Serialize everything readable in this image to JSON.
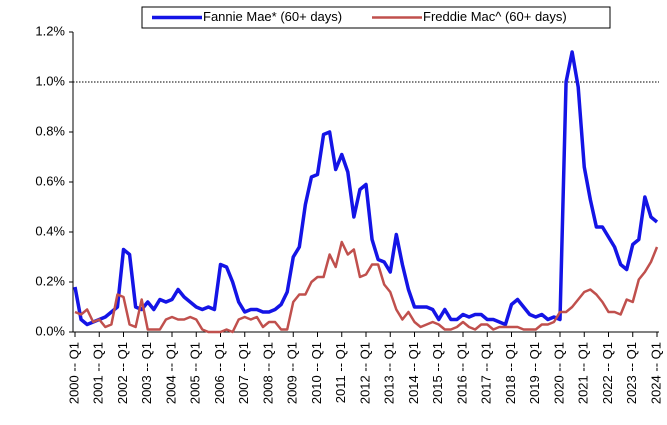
{
  "chart_data": {
    "type": "line",
    "categories": [
      "2000 -- Q1",
      null,
      null,
      null,
      "2001 -- Q1",
      null,
      null,
      null,
      "2002 -- Q1",
      null,
      null,
      null,
      "2003 -- Q1",
      null,
      null,
      null,
      "2004 -- Q1",
      null,
      null,
      null,
      "2005 -- Q1",
      null,
      null,
      null,
      "2006 -- Q1",
      null,
      null,
      null,
      "2007 -- Q1",
      null,
      null,
      null,
      "2008 -- Q1",
      null,
      null,
      null,
      "2009 -- Q1",
      null,
      null,
      null,
      "2010 -- Q1",
      null,
      null,
      null,
      "2011 -- Q1",
      null,
      null,
      null,
      "2012 -- Q1",
      null,
      null,
      null,
      "2013 -- Q1",
      null,
      null,
      null,
      "2014 -- Q1",
      null,
      null,
      null,
      "2015 -- Q1",
      null,
      null,
      null,
      "2016 -- Q1",
      null,
      null,
      null,
      "2017 -- Q1",
      null,
      null,
      null,
      "2018 -- Q1",
      null,
      null,
      null,
      "2019 -- Q1",
      null,
      null,
      null,
      "2020 -- Q1",
      null,
      null,
      null,
      "2021 -- Q1",
      null,
      null,
      null,
      "2022 -- Q1",
      null,
      null,
      null,
      "2023 -- Q1",
      null,
      null,
      null,
      "2024 -- Q1"
    ],
    "series": [
      {
        "name": "Fannie Mae* (60+ days)",
        "color": "#1414e6",
        "values": [
          0.18,
          0.05,
          0.03,
          0.04,
          0.05,
          0.06,
          0.08,
          0.1,
          0.33,
          0.31,
          0.1,
          0.09,
          0.12,
          0.09,
          0.13,
          0.12,
          0.13,
          0.17,
          0.14,
          0.12,
          0.1,
          0.09,
          0.1,
          0.09,
          0.27,
          0.26,
          0.2,
          0.12,
          0.08,
          0.09,
          0.09,
          0.08,
          0.08,
          0.09,
          0.11,
          0.16,
          0.3,
          0.34,
          0.51,
          0.62,
          0.63,
          0.79,
          0.8,
          0.65,
          0.71,
          0.64,
          0.46,
          0.57,
          0.59,
          0.37,
          0.29,
          0.28,
          0.24,
          0.39,
          0.27,
          0.17,
          0.1,
          0.1,
          0.1,
          0.09,
          0.05,
          0.09,
          0.05,
          0.05,
          0.07,
          0.06,
          0.07,
          0.07,
          0.05,
          0.05,
          0.04,
          0.03,
          0.11,
          0.13,
          0.1,
          0.07,
          0.06,
          0.07,
          0.05,
          0.06,
          0.05,
          1.0,
          1.12,
          0.98,
          0.66,
          0.53,
          0.42,
          0.42,
          0.38,
          0.34,
          0.27,
          0.25,
          0.35,
          0.37,
          0.54,
          0.46,
          0.44
        ]
      },
      {
        "name": "Freddie Mac^ (60+ days)",
        "color": "#c0504d",
        "values": [
          0.08,
          0.07,
          0.09,
          0.04,
          0.05,
          0.02,
          0.03,
          0.15,
          0.14,
          0.03,
          0.02,
          0.13,
          0.01,
          0.01,
          0.01,
          0.05,
          0.06,
          0.05,
          0.05,
          0.06,
          0.05,
          0.01,
          0.0,
          0.0,
          0.0,
          0.01,
          0.0,
          0.05,
          0.06,
          0.05,
          0.06,
          0.02,
          0.04,
          0.04,
          0.01,
          0.01,
          0.12,
          0.15,
          0.15,
          0.2,
          0.22,
          0.22,
          0.31,
          0.26,
          0.36,
          0.31,
          0.33,
          0.22,
          0.23,
          0.27,
          0.27,
          0.19,
          0.16,
          0.09,
          0.05,
          0.08,
          0.04,
          0.02,
          0.03,
          0.04,
          0.03,
          0.01,
          0.01,
          0.02,
          0.04,
          0.02,
          0.01,
          0.03,
          0.03,
          0.01,
          0.02,
          0.02,
          0.02,
          0.02,
          0.01,
          0.01,
          0.01,
          0.03,
          0.03,
          0.04,
          0.08,
          0.08,
          0.1,
          0.13,
          0.16,
          0.17,
          0.15,
          0.12,
          0.08,
          0.08,
          0.07,
          0.13,
          0.12,
          0.21,
          0.24,
          0.28,
          0.34
        ]
      }
    ],
    "ylim": [
      0,
      1.2
    ],
    "yticks": [
      {
        "value": 0,
        "label": "0.0%"
      },
      {
        "value": 0.2,
        "label": "0.2%"
      },
      {
        "value": 0.4,
        "label": "0.4%"
      },
      {
        "value": 0.6,
        "label": "0.6%"
      },
      {
        "value": 0.8,
        "label": "0.8%"
      },
      {
        "value": 1.0,
        "label": "1.0%"
      },
      {
        "value": 1.2,
        "label": "1.2%"
      }
    ],
    "reference_line": 1.0,
    "legend": "top"
  }
}
